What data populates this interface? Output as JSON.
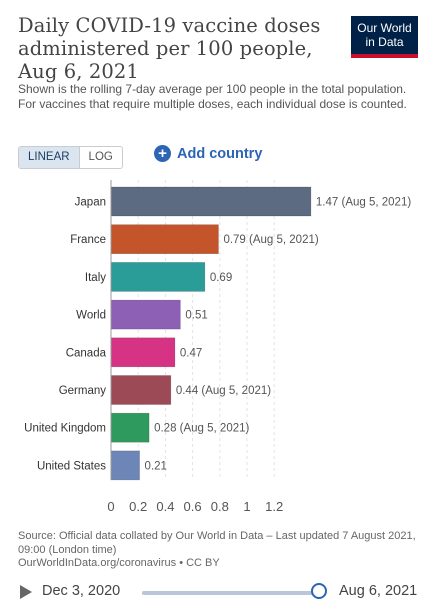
{
  "header": {
    "title": "Daily COVID-19 vaccine doses administered per 100 people, Aug 6, 2021",
    "subtitle": "Shown is the rolling 7-day average per 100 people in the total population. For vaccines that require multiple doses, each individual dose is counted.",
    "logo_line1": "Our World",
    "logo_line2": "in Data",
    "logo_color": "#002147",
    "logo_accent": "#c8102e"
  },
  "controls": {
    "linear_label": "LINEAR",
    "log_label": "LOG",
    "add_country_label": "Add country",
    "add_country_icon": "plus-circle-icon"
  },
  "chart_data": {
    "type": "bar",
    "orientation": "horizontal",
    "categories": [
      "Japan",
      "France",
      "Italy",
      "World",
      "Canada",
      "Germany",
      "United Kingdom",
      "United States"
    ],
    "values": [
      1.47,
      0.79,
      0.69,
      0.51,
      0.47,
      0.44,
      0.28,
      0.21
    ],
    "value_labels": [
      "1.47 (Aug 5, 2021)",
      "0.79 (Aug 5, 2021)",
      "0.69",
      "0.51",
      "0.47",
      "0.44 (Aug 5, 2021)",
      "0.28 (Aug 5, 2021)",
      "0.21"
    ],
    "colors": [
      "#5c6b82",
      "#c4552b",
      "#2a9d99",
      "#8e60b5",
      "#d63384",
      "#9c4a56",
      "#2e9a5e",
      "#6d86b8"
    ],
    "xticks": [
      0,
      0.2,
      0.4,
      0.6,
      0.8,
      1,
      1.2
    ],
    "xtick_labels": [
      "0",
      "0.2",
      "0.4",
      "0.6",
      "0.8",
      "1",
      "1.2"
    ],
    "xlim": [
      0,
      1.47
    ],
    "grid": true
  },
  "footer": {
    "source_text": "Source: Official data collated by Our World in Data – Last updated 7 August 2021, 09:00 (London time)",
    "source_link": "OurWorldInData.org/coronavirus • CC BY"
  },
  "timeline": {
    "start_date": "Dec 3, 2020",
    "end_date": "Aug 6, 2021",
    "play_icon": "play-icon"
  }
}
